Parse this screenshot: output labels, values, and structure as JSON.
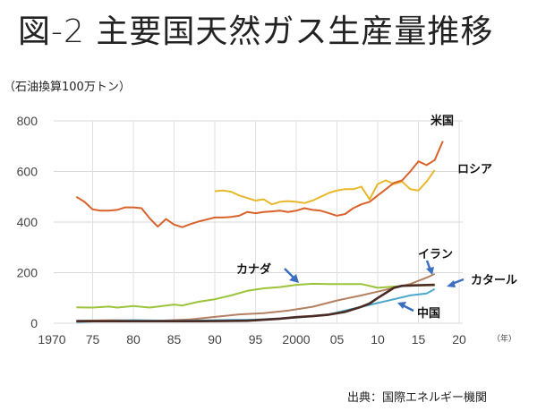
{
  "title": "図-2 主要国天然ガス生産量推移",
  "source": "出典：国際エネルギー機関",
  "chart_data": {
    "type": "line",
    "title": "図-2 主要国天然ガス生産量推移",
    "ylabel": "（石油換算100万トン）",
    "xlabel": "（年）",
    "xlim": [
      1970,
      2020
    ],
    "ylim": [
      0,
      800
    ],
    "grid": true,
    "x_ticks": [
      1970,
      1975,
      1980,
      1985,
      1990,
      1995,
      2000,
      2005,
      2010,
      2015,
      2020
    ],
    "x_tick_labels": [
      "1970",
      "75",
      "80",
      "85",
      "90",
      "95",
      "2000",
      "05",
      "10",
      "15",
      "20"
    ],
    "y_ticks": [
      0,
      200,
      400,
      600,
      800
    ],
    "y_tick_labels": [
      "0",
      "200",
      "400",
      "600",
      "800"
    ],
    "series": [
      {
        "name": "米国",
        "color": "#d9622b",
        "x": [
          1973,
          1974,
          1975,
          1976,
          1977,
          1978,
          1979,
          1980,
          1981,
          1982,
          1983,
          1984,
          1985,
          1986,
          1987,
          1988,
          1989,
          1990,
          1991,
          1992,
          1993,
          1994,
          1995,
          1996,
          1997,
          1998,
          1999,
          2000,
          2001,
          2002,
          2003,
          2004,
          2005,
          2006,
          2007,
          2008,
          2009,
          2010,
          2011,
          2012,
          2013,
          2014,
          2015,
          2016,
          2017,
          2018
        ],
        "y": [
          500,
          480,
          450,
          445,
          445,
          448,
          458,
          458,
          455,
          415,
          382,
          412,
          390,
          380,
          392,
          402,
          410,
          418,
          418,
          420,
          425,
          440,
          435,
          440,
          442,
          445,
          440,
          445,
          455,
          448,
          445,
          435,
          425,
          432,
          455,
          470,
          480,
          505,
          530,
          555,
          565,
          600,
          640,
          625,
          645,
          720
        ]
      },
      {
        "name": "ロシア",
        "color": "#e8b82a",
        "x": [
          1990,
          1991,
          1992,
          1993,
          1994,
          1995,
          1996,
          1997,
          1998,
          1999,
          2000,
          2001,
          2002,
          2003,
          2004,
          2005,
          2006,
          2007,
          2008,
          2009,
          2010,
          2011,
          2012,
          2013,
          2014,
          2015,
          2016,
          2017
        ],
        "y": [
          522,
          525,
          520,
          505,
          495,
          485,
          490,
          470,
          480,
          483,
          480,
          475,
          485,
          500,
          515,
          525,
          530,
          530,
          540,
          490,
          550,
          565,
          550,
          560,
          530,
          525,
          560,
          605
        ]
      },
      {
        "name": "カナダ",
        "color": "#9cc43a",
        "x": [
          1973,
          1975,
          1977,
          1978,
          1980,
          1982,
          1984,
          1985,
          1986,
          1988,
          1990,
          1992,
          1994,
          1996,
          1998,
          2000,
          2002,
          2004,
          2006,
          2008,
          2010,
          2012,
          2014,
          2016,
          2017
        ],
        "y": [
          63,
          62,
          66,
          62,
          68,
          62,
          70,
          74,
          70,
          85,
          95,
          110,
          128,
          138,
          143,
          152,
          156,
          155,
          155,
          155,
          140,
          145,
          150,
          150,
          150
        ]
      },
      {
        "name": "イラン",
        "color": "#b48060",
        "x": [
          1973,
          1978,
          1983,
          1987,
          1990,
          1993,
          1996,
          1999,
          2002,
          2005,
          2008,
          2010,
          2012,
          2014,
          2016,
          2017
        ],
        "y": [
          10,
          12,
          10,
          15,
          25,
          35,
          40,
          50,
          65,
          90,
          110,
          125,
          140,
          155,
          180,
          195
        ]
      },
      {
        "name": "カタール",
        "color": "#4a2a22",
        "x": [
          1973,
          1980,
          1988,
          1994,
          1998,
          2000,
          2002,
          2004,
          2006,
          2008,
          2009,
          2010,
          2011,
          2012,
          2013,
          2015,
          2017
        ],
        "y": [
          8,
          8,
          8,
          10,
          18,
          24,
          28,
          34,
          45,
          65,
          78,
          100,
          120,
          140,
          148,
          150,
          152
        ]
      },
      {
        "name": "中国",
        "color": "#4aa8cc",
        "x": [
          1973,
          1980,
          1985,
          1990,
          1995,
          2000,
          2004,
          2006,
          2008,
          2010,
          2012,
          2014,
          2016,
          2017
        ],
        "y": [
          5,
          12,
          10,
          12,
          14,
          22,
          35,
          50,
          65,
          80,
          95,
          110,
          118,
          135
        ]
      }
    ],
    "annotations": [
      "米国",
      "ロシア",
      "カナダ",
      "イラン",
      "カタール",
      "中国"
    ]
  }
}
